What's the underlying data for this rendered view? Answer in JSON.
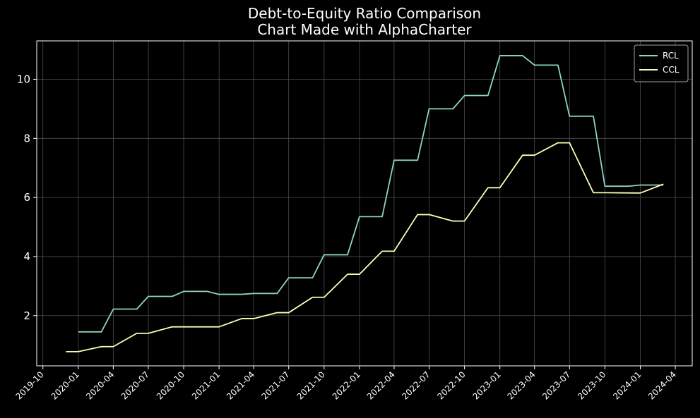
{
  "chart_data": {
    "type": "line",
    "title": "Debt-to-Equity Ratio Comparison",
    "subtitle": "Chart Made with AlphaCharter",
    "xlabel": "",
    "ylabel": "",
    "x_ticks": [
      "2019-10",
      "2020-01",
      "2020-04",
      "2020-07",
      "2020-10",
      "2021-01",
      "2021-04",
      "2021-07",
      "2021-10",
      "2022-01",
      "2022-04",
      "2022-07",
      "2022-10",
      "2023-01",
      "2023-04",
      "2023-07",
      "2023-10",
      "2024-01",
      "2024-04"
    ],
    "y_ticks": [
      "2",
      "4",
      "6",
      "8",
      "10"
    ],
    "xlim": [
      "2019-09-15",
      "2024-05-15"
    ],
    "ylim": [
      0.3,
      11.3
    ],
    "grid": true,
    "legend_position": "top-right",
    "background": "#000000",
    "series": [
      {
        "name": "RCL",
        "color": "#8dd3c7",
        "points": [
          [
            "2020-01-01",
            1.45
          ],
          [
            "2020-03-01",
            1.45
          ],
          [
            "2020-04-01",
            2.22
          ],
          [
            "2020-06-01",
            2.22
          ],
          [
            "2020-07-01",
            2.65
          ],
          [
            "2020-09-01",
            2.65
          ],
          [
            "2020-10-01",
            2.82
          ],
          [
            "2020-12-01",
            2.82
          ],
          [
            "2021-01-01",
            2.72
          ],
          [
            "2021-03-01",
            2.72
          ],
          [
            "2021-04-01",
            2.75
          ],
          [
            "2021-06-01",
            2.75
          ],
          [
            "2021-07-01",
            3.28
          ],
          [
            "2021-09-01",
            3.28
          ],
          [
            "2021-10-01",
            4.06
          ],
          [
            "2021-12-01",
            4.06
          ],
          [
            "2022-01-01",
            5.35
          ],
          [
            "2022-03-01",
            5.35
          ],
          [
            "2022-04-01",
            7.26
          ],
          [
            "2022-06-01",
            7.26
          ],
          [
            "2022-07-01",
            9.0
          ],
          [
            "2022-09-01",
            9.0
          ],
          [
            "2022-10-01",
            9.45
          ],
          [
            "2022-12-01",
            9.45
          ],
          [
            "2023-01-01",
            10.8
          ],
          [
            "2023-03-01",
            10.8
          ],
          [
            "2023-04-01",
            10.48
          ],
          [
            "2023-06-01",
            10.48
          ],
          [
            "2023-07-01",
            8.75
          ],
          [
            "2023-09-01",
            8.75
          ],
          [
            "2023-10-01",
            6.38
          ],
          [
            "2023-12-01",
            6.38
          ],
          [
            "2024-01-01",
            6.42
          ],
          [
            "2024-03-01",
            6.42
          ]
        ]
      },
      {
        "name": "CCL",
        "color": "#ffffb3",
        "points": [
          [
            "2019-11-30",
            0.78
          ],
          [
            "2020-01-01",
            0.78
          ],
          [
            "2020-03-01",
            0.95
          ],
          [
            "2020-04-01",
            0.95
          ],
          [
            "2020-06-01",
            1.4
          ],
          [
            "2020-07-01",
            1.4
          ],
          [
            "2020-09-01",
            1.62
          ],
          [
            "2020-10-01",
            1.62
          ],
          [
            "2020-12-01",
            1.62
          ],
          [
            "2021-01-01",
            1.62
          ],
          [
            "2021-03-01",
            1.9
          ],
          [
            "2021-04-01",
            1.9
          ],
          [
            "2021-06-01",
            2.1
          ],
          [
            "2021-07-01",
            2.1
          ],
          [
            "2021-09-01",
            2.62
          ],
          [
            "2021-10-01",
            2.62
          ],
          [
            "2021-12-01",
            3.4
          ],
          [
            "2022-01-01",
            3.4
          ],
          [
            "2022-03-01",
            4.18
          ],
          [
            "2022-04-01",
            4.18
          ],
          [
            "2022-06-01",
            5.42
          ],
          [
            "2022-07-01",
            5.42
          ],
          [
            "2022-09-01",
            5.2
          ],
          [
            "2022-10-01",
            5.2
          ],
          [
            "2022-12-01",
            6.33
          ],
          [
            "2023-01-01",
            6.33
          ],
          [
            "2023-03-01",
            7.43
          ],
          [
            "2023-04-01",
            7.43
          ],
          [
            "2023-06-01",
            7.85
          ],
          [
            "2023-07-01",
            7.85
          ],
          [
            "2023-09-01",
            6.16
          ],
          [
            "2023-10-01",
            6.16
          ],
          [
            "2024-01-01",
            6.15
          ],
          [
            "2024-03-01",
            6.45
          ]
        ]
      }
    ]
  }
}
